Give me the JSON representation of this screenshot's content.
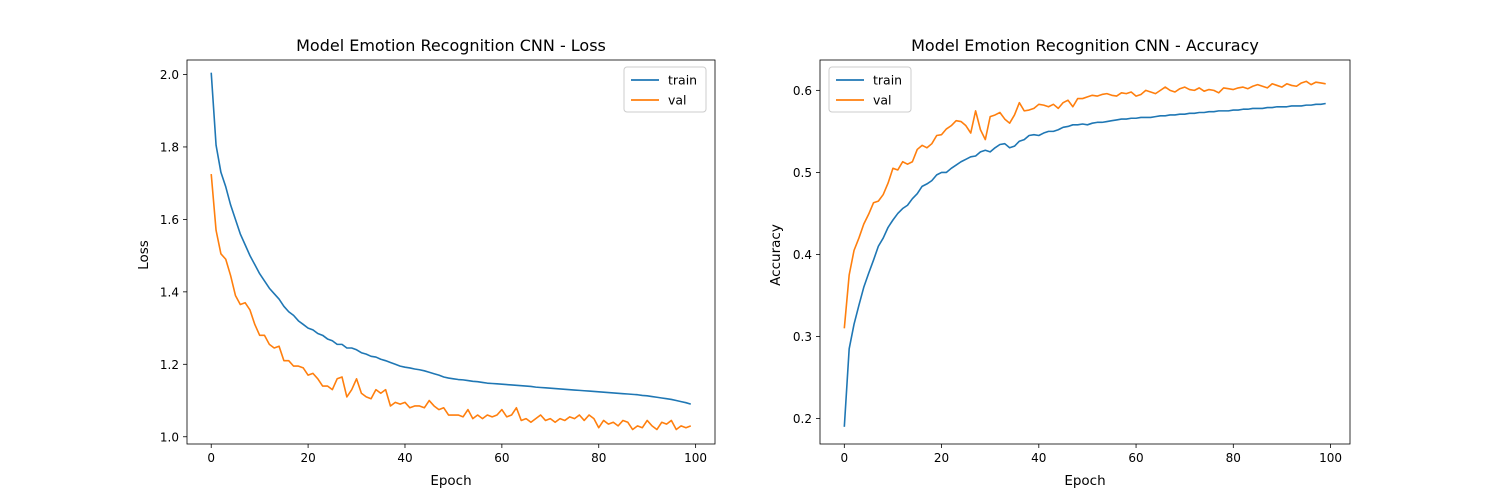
{
  "chart_data": [
    {
      "type": "line",
      "title": "Model Emotion Recognition CNN - Loss",
      "xlabel": "Epoch",
      "ylabel": "Loss",
      "xlim": [
        -5,
        104
      ],
      "ylim": [
        0.98,
        2.04
      ],
      "xticks": [
        0,
        20,
        40,
        60,
        80,
        100
      ],
      "yticks": [
        1.0,
        1.2,
        1.4,
        1.6,
        1.8,
        2.0
      ],
      "xtick_labels": [
        "0",
        "20",
        "40",
        "60",
        "80",
        "100"
      ],
      "ytick_labels": [
        "1.0",
        "1.2",
        "1.4",
        "1.6",
        "1.8",
        "2.0"
      ],
      "legend_position": "top-right",
      "x": [
        0,
        1,
        2,
        3,
        4,
        5,
        6,
        7,
        8,
        9,
        10,
        11,
        12,
        13,
        14,
        15,
        16,
        17,
        18,
        19,
        20,
        21,
        22,
        23,
        24,
        25,
        26,
        27,
        28,
        29,
        30,
        31,
        32,
        33,
        34,
        35,
        36,
        37,
        38,
        39,
        40,
        41,
        42,
        43,
        44,
        45,
        46,
        47,
        48,
        49,
        50,
        51,
        52,
        53,
        54,
        55,
        56,
        57,
        58,
        59,
        60,
        61,
        62,
        63,
        64,
        65,
        66,
        67,
        68,
        69,
        70,
        71,
        72,
        73,
        74,
        75,
        76,
        77,
        78,
        79,
        80,
        81,
        82,
        83,
        84,
        85,
        86,
        87,
        88,
        89,
        90,
        91,
        92,
        93,
        94,
        95,
        96,
        97,
        98,
        99
      ],
      "series": [
        {
          "name": "train",
          "color": "#1f77b4",
          "values": [
            2.005,
            1.805,
            1.73,
            1.69,
            1.64,
            1.6,
            1.56,
            1.53,
            1.5,
            1.475,
            1.45,
            1.43,
            1.41,
            1.395,
            1.38,
            1.36,
            1.345,
            1.335,
            1.32,
            1.31,
            1.3,
            1.295,
            1.285,
            1.28,
            1.27,
            1.265,
            1.255,
            1.255,
            1.245,
            1.245,
            1.24,
            1.232,
            1.228,
            1.222,
            1.22,
            1.214,
            1.21,
            1.205,
            1.2,
            1.195,
            1.192,
            1.19,
            1.187,
            1.185,
            1.182,
            1.178,
            1.174,
            1.17,
            1.165,
            1.162,
            1.16,
            1.158,
            1.157,
            1.155,
            1.153,
            1.152,
            1.15,
            1.148,
            1.147,
            1.146,
            1.145,
            1.144,
            1.143,
            1.142,
            1.141,
            1.14,
            1.139,
            1.137,
            1.136,
            1.135,
            1.134,
            1.133,
            1.132,
            1.131,
            1.13,
            1.129,
            1.128,
            1.127,
            1.126,
            1.125,
            1.124,
            1.123,
            1.122,
            1.121,
            1.12,
            1.119,
            1.118,
            1.117,
            1.116,
            1.114,
            1.113,
            1.111,
            1.109,
            1.107,
            1.105,
            1.103,
            1.1,
            1.097,
            1.094,
            1.09
          ]
        },
        {
          "name": "val",
          "color": "#ff7f0e",
          "values": [
            1.725,
            1.57,
            1.505,
            1.49,
            1.445,
            1.39,
            1.365,
            1.37,
            1.35,
            1.31,
            1.28,
            1.28,
            1.255,
            1.245,
            1.25,
            1.21,
            1.21,
            1.195,
            1.195,
            1.19,
            1.17,
            1.175,
            1.16,
            1.14,
            1.14,
            1.13,
            1.16,
            1.165,
            1.11,
            1.13,
            1.16,
            1.12,
            1.11,
            1.105,
            1.13,
            1.12,
            1.13,
            1.085,
            1.095,
            1.09,
            1.095,
            1.08,
            1.085,
            1.085,
            1.08,
            1.1,
            1.085,
            1.075,
            1.08,
            1.06,
            1.06,
            1.06,
            1.055,
            1.075,
            1.05,
            1.06,
            1.05,
            1.06,
            1.055,
            1.06,
            1.075,
            1.055,
            1.06,
            1.08,
            1.045,
            1.05,
            1.04,
            1.05,
            1.06,
            1.045,
            1.05,
            1.04,
            1.05,
            1.045,
            1.055,
            1.05,
            1.06,
            1.045,
            1.06,
            1.05,
            1.025,
            1.045,
            1.035,
            1.04,
            1.03,
            1.045,
            1.04,
            1.02,
            1.03,
            1.025,
            1.045,
            1.03,
            1.02,
            1.04,
            1.035,
            1.045,
            1.02,
            1.03,
            1.025,
            1.03
          ]
        }
      ]
    },
    {
      "type": "line",
      "title": "Model Emotion Recognition CNN - Accuracy",
      "xlabel": "Epoch",
      "ylabel": "Accuracy",
      "xlim": [
        -5,
        104
      ],
      "ylim": [
        0.169,
        0.637
      ],
      "xticks": [
        0,
        20,
        40,
        60,
        80,
        100
      ],
      "yticks": [
        0.2,
        0.3,
        0.4,
        0.5,
        0.6
      ],
      "xtick_labels": [
        "0",
        "20",
        "40",
        "60",
        "80",
        "100"
      ],
      "ytick_labels": [
        "0.2",
        "0.3",
        "0.4",
        "0.5",
        "0.6"
      ],
      "legend_position": "top-left",
      "x": [
        0,
        1,
        2,
        3,
        4,
        5,
        6,
        7,
        8,
        9,
        10,
        11,
        12,
        13,
        14,
        15,
        16,
        17,
        18,
        19,
        20,
        21,
        22,
        23,
        24,
        25,
        26,
        27,
        28,
        29,
        30,
        31,
        32,
        33,
        34,
        35,
        36,
        37,
        38,
        39,
        40,
        41,
        42,
        43,
        44,
        45,
        46,
        47,
        48,
        49,
        50,
        51,
        52,
        53,
        54,
        55,
        56,
        57,
        58,
        59,
        60,
        61,
        62,
        63,
        64,
        65,
        66,
        67,
        68,
        69,
        70,
        71,
        72,
        73,
        74,
        75,
        76,
        77,
        78,
        79,
        80,
        81,
        82,
        83,
        84,
        85,
        86,
        87,
        88,
        89,
        90,
        91,
        92,
        93,
        94,
        95,
        96,
        97,
        98,
        99
      ],
      "series": [
        {
          "name": "train",
          "color": "#1f77b4",
          "values": [
            0.19,
            0.285,
            0.315,
            0.338,
            0.36,
            0.377,
            0.393,
            0.41,
            0.42,
            0.433,
            0.442,
            0.45,
            0.456,
            0.46,
            0.468,
            0.474,
            0.483,
            0.486,
            0.49,
            0.497,
            0.5,
            0.5,
            0.505,
            0.509,
            0.513,
            0.516,
            0.519,
            0.52,
            0.525,
            0.527,
            0.525,
            0.53,
            0.534,
            0.535,
            0.53,
            0.532,
            0.538,
            0.54,
            0.545,
            0.546,
            0.545,
            0.548,
            0.55,
            0.55,
            0.552,
            0.555,
            0.556,
            0.558,
            0.558,
            0.559,
            0.558,
            0.56,
            0.561,
            0.561,
            0.562,
            0.563,
            0.564,
            0.565,
            0.565,
            0.566,
            0.566,
            0.567,
            0.567,
            0.567,
            0.568,
            0.569,
            0.569,
            0.57,
            0.57,
            0.571,
            0.571,
            0.572,
            0.572,
            0.573,
            0.573,
            0.574,
            0.574,
            0.575,
            0.575,
            0.575,
            0.576,
            0.576,
            0.577,
            0.577,
            0.578,
            0.578,
            0.578,
            0.579,
            0.579,
            0.58,
            0.58,
            0.58,
            0.581,
            0.581,
            0.581,
            0.582,
            0.582,
            0.583,
            0.583,
            0.584
          ]
        },
        {
          "name": "val",
          "color": "#ff7f0e",
          "values": [
            0.31,
            0.375,
            0.405,
            0.42,
            0.437,
            0.449,
            0.463,
            0.465,
            0.473,
            0.487,
            0.505,
            0.503,
            0.513,
            0.51,
            0.513,
            0.528,
            0.533,
            0.53,
            0.535,
            0.545,
            0.546,
            0.553,
            0.557,
            0.563,
            0.562,
            0.557,
            0.548,
            0.575,
            0.552,
            0.54,
            0.568,
            0.57,
            0.573,
            0.565,
            0.56,
            0.57,
            0.585,
            0.575,
            0.576,
            0.578,
            0.583,
            0.582,
            0.58,
            0.583,
            0.578,
            0.585,
            0.588,
            0.58,
            0.59,
            0.59,
            0.592,
            0.594,
            0.593,
            0.595,
            0.596,
            0.594,
            0.593,
            0.597,
            0.596,
            0.598,
            0.593,
            0.595,
            0.6,
            0.598,
            0.596,
            0.6,
            0.604,
            0.6,
            0.598,
            0.602,
            0.604,
            0.601,
            0.6,
            0.603,
            0.599,
            0.601,
            0.6,
            0.597,
            0.603,
            0.602,
            0.601,
            0.603,
            0.604,
            0.602,
            0.605,
            0.607,
            0.605,
            0.603,
            0.608,
            0.606,
            0.604,
            0.608,
            0.606,
            0.605,
            0.609,
            0.611,
            0.607,
            0.61,
            0.609,
            0.608
          ]
        }
      ]
    }
  ]
}
